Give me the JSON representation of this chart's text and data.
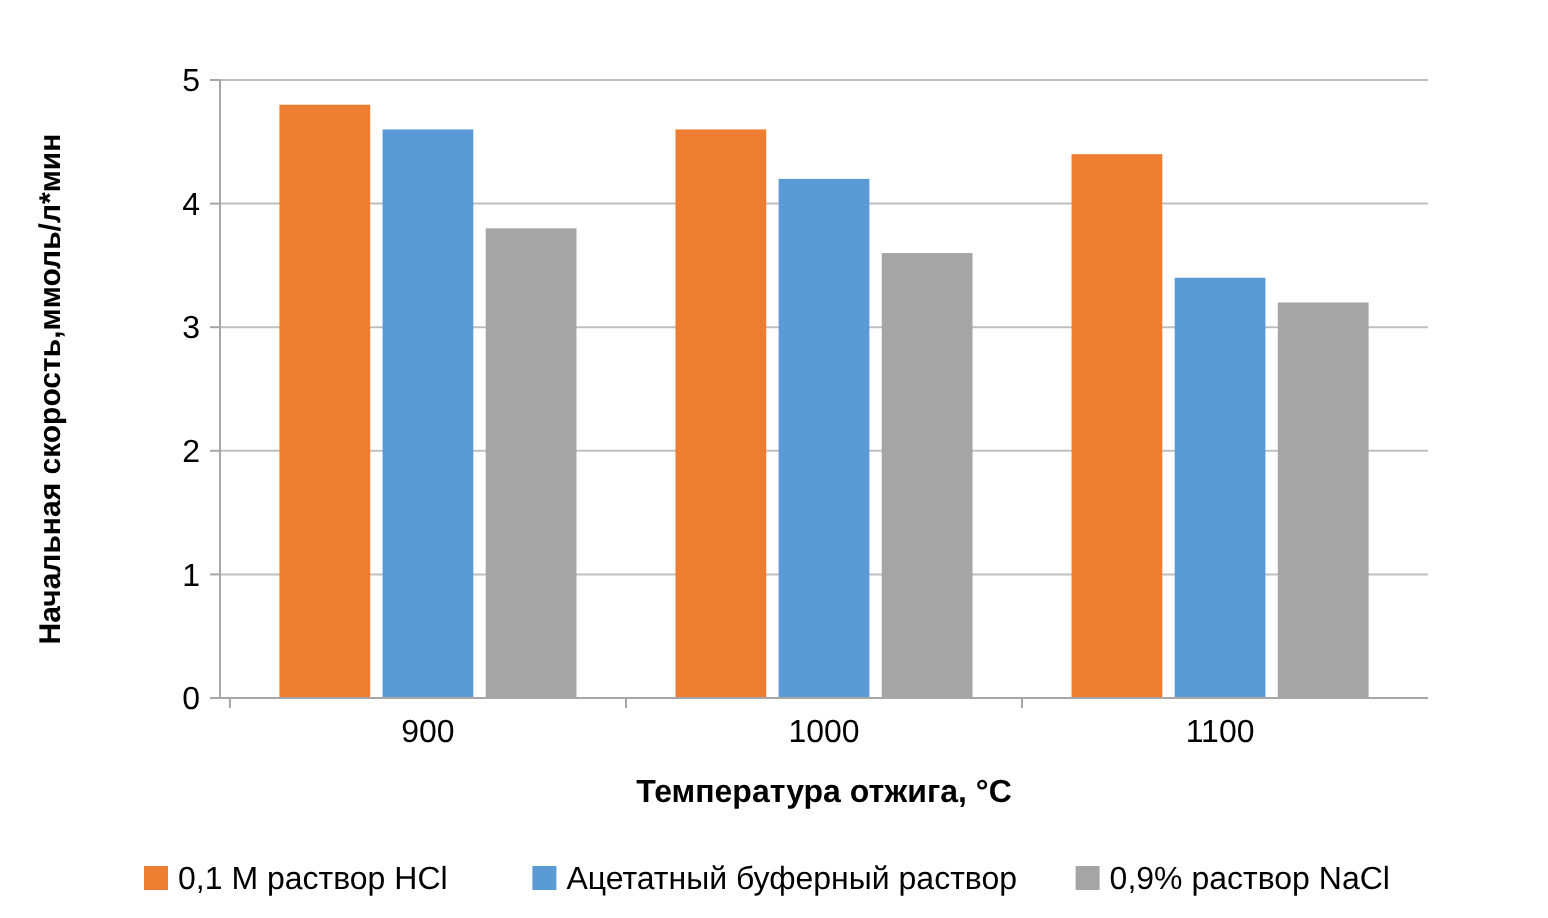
{
  "chart_data": {
    "type": "bar",
    "xlabel": "Температура отжига, °C",
    "ylabel": "Начальная скорость,ммоль/л*мин",
    "categories": [
      "900",
      "1000",
      "1100"
    ],
    "series": [
      {
        "name": "0,1 М раствор HCl",
        "color": "#ed7d31",
        "values": [
          4.8,
          4.6,
          4.4
        ]
      },
      {
        "name": "Ацетатный буферный раствор",
        "color": "#5b9bd5",
        "values": [
          4.6,
          4.2,
          3.4
        ]
      },
      {
        "name": "0,9% раствор NaCl",
        "color": "#a5a5a5",
        "values": [
          3.8,
          3.6,
          3.2
        ]
      }
    ],
    "ylim": [
      0,
      5
    ],
    "yticks": [
      0,
      1,
      2,
      3,
      4,
      5
    ],
    "grid": "y",
    "legend": "bottom"
  }
}
